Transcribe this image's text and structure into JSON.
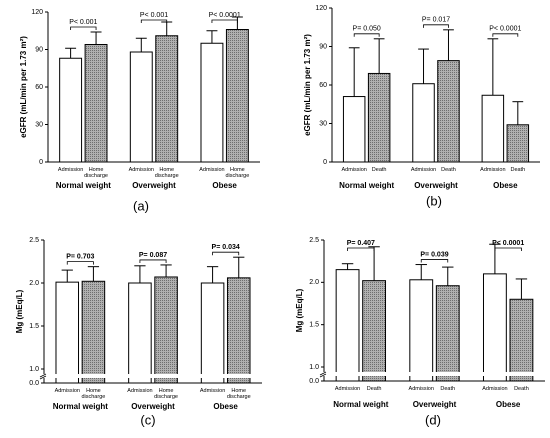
{
  "chart_data": [
    {
      "type": "bar",
      "panel_label": "(a)",
      "ylabel": "eGFR (mL/min per 1.73 m²)",
      "categories": [
        "Normal weight",
        "Overweight",
        "Obese"
      ],
      "series": [
        {
          "name": "Admission",
          "color": "#ffffff",
          "values": [
            83,
            88,
            95
          ],
          "errors": [
            8,
            11,
            10
          ]
        },
        {
          "name": "Home discharge",
          "color": "#a6a6a6",
          "values": [
            94,
            101,
            106
          ],
          "errors": [
            10,
            11,
            10
          ]
        }
      ],
      "annotations": [
        "P< 0.001",
        "P< 0.001",
        "P< 0.0001"
      ],
      "ylim": [
        0,
        120
      ],
      "yticks": [
        0,
        30,
        60,
        90,
        120
      ]
    },
    {
      "type": "bar",
      "panel_label": "(b)",
      "ylabel": "eGFR (mL/min per 1.73 m²)",
      "categories": [
        "Normal weight",
        "Overweight",
        "Obese"
      ],
      "series": [
        {
          "name": "Admission",
          "color": "#ffffff",
          "values": [
            51,
            61,
            52
          ],
          "errors": [
            38,
            27,
            44
          ]
        },
        {
          "name": "Death",
          "color": "#a6a6a6",
          "values": [
            69,
            79,
            29
          ],
          "errors": [
            27,
            24,
            18
          ]
        }
      ],
      "annotations": [
        "P= 0.050",
        "P= 0.017",
        "P< 0.0001"
      ],
      "ylim": [
        0,
        120
      ],
      "yticks": [
        0,
        30,
        60,
        90,
        120
      ]
    },
    {
      "type": "bar",
      "panel_label": "(c)",
      "ylabel": "Mg (mEq/L)",
      "categories": [
        "Normal weight",
        "Overweight",
        "Obese"
      ],
      "series": [
        {
          "name": "Admission",
          "color": "#ffffff",
          "values": [
            2.01,
            2.0,
            2.0
          ],
          "errors": [
            0.14,
            0.2,
            0.19
          ]
        },
        {
          "name": "Home discharge",
          "color": "#a6a6a6",
          "values": [
            2.02,
            2.07,
            2.06
          ],
          "errors": [
            0.17,
            0.14,
            0.24
          ]
        }
      ],
      "annotations": [
        "P= 0.703",
        "P= 0.087",
        "P= 0.034"
      ],
      "ylim": [
        0,
        2.5
      ],
      "ybreak": 1.0,
      "yticks": [
        {
          "value": 0,
          "label": "0.0"
        },
        {
          "value": 1,
          "label": "1.0"
        },
        1.5,
        {
          "value": 2,
          "label": "2.0"
        },
        2.5
      ]
    },
    {
      "type": "bar",
      "panel_label": "(d)",
      "ylabel": "Mg (mEq/L)",
      "categories": [
        "Normal weight",
        "Overweight",
        "Obese"
      ],
      "series": [
        {
          "name": "Admission",
          "color": "#ffffff",
          "values": [
            2.15,
            2.03,
            2.1
          ],
          "errors": [
            0.07,
            0.18,
            0.35
          ]
        },
        {
          "name": "Death",
          "color": "#a6a6a6",
          "values": [
            2.02,
            1.96,
            1.8
          ],
          "errors": [
            0.4,
            0.22,
            0.24
          ]
        }
      ],
      "annotations": [
        "P= 0.407",
        "P= 0.039",
        "P< 0.0001"
      ],
      "ylim": [
        0,
        2.5
      ],
      "ybreak": 1.0,
      "yticks": [
        {
          "value": 0,
          "label": "0.0"
        },
        {
          "value": 1,
          "label": "1.0"
        },
        1.5,
        {
          "value": 2,
          "label": "2.0"
        },
        2.5
      ]
    }
  ]
}
